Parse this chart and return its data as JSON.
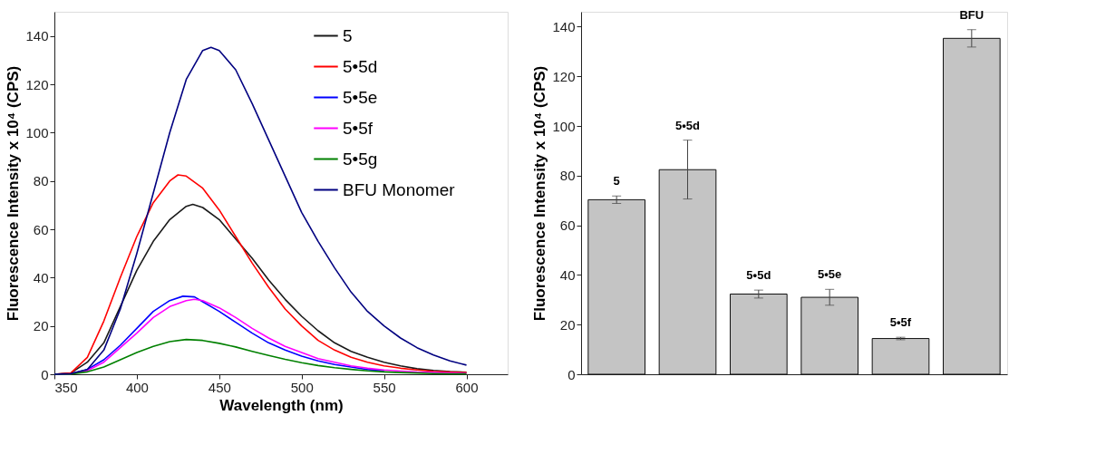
{
  "chart_data": [
    {
      "type": "line",
      "xlabel": "Wavelength (nm)",
      "ylabel": "Fluorescence Intensity x 10⁴ (CPS)",
      "xlim": [
        350,
        625
      ],
      "xticks": [
        350,
        400,
        450,
        500,
        550,
        600
      ],
      "ylim": [
        0,
        150
      ],
      "yticks": [
        0,
        20,
        40,
        60,
        80,
        100,
        120,
        140
      ],
      "grid": false,
      "legend": "top right",
      "line_style": "solid",
      "marker": "none",
      "x": [
        350,
        360,
        370,
        380,
        390,
        400,
        410,
        420,
        430,
        440,
        450,
        460,
        470,
        480,
        490,
        500,
        510,
        520,
        530,
        540,
        550,
        560,
        570,
        580,
        590,
        600
      ],
      "series": [
        {
          "name": "5",
          "color": "#1a1a1a",
          "x": [
            350,
            360,
            370,
            380,
            390,
            400,
            410,
            420,
            430,
            434,
            440,
            450,
            460,
            470,
            480,
            490,
            500,
            510,
            520,
            530,
            540,
            550,
            560,
            570,
            580,
            590,
            600
          ],
          "values": [
            0,
            0.5,
            5,
            13,
            28,
            43,
            55,
            64,
            69.5,
            70.3,
            69,
            64,
            56,
            48,
            39,
            31,
            24,
            18,
            13,
            9.5,
            7,
            5,
            3.5,
            2.3,
            1.6,
            1.1,
            0.8
          ]
        },
        {
          "name": "5•5d",
          "color": "#ff0000",
          "x": [
            350,
            360,
            370,
            380,
            390,
            400,
            410,
            420,
            425,
            430,
            440,
            450,
            460,
            470,
            480,
            490,
            500,
            510,
            520,
            530,
            540,
            550,
            560,
            570,
            580,
            590,
            600
          ],
          "values": [
            0,
            0.5,
            7,
            22,
            40,
            57,
            71,
            80,
            82.5,
            82,
            77,
            68,
            57,
            46,
            36,
            27,
            20,
            14,
            10,
            7,
            5,
            3.5,
            2.5,
            1.8,
            1.2,
            0.9,
            0.7
          ]
        },
        {
          "name": "5•5e",
          "color": "#0000ff",
          "x": [
            350,
            360,
            370,
            380,
            390,
            400,
            410,
            420,
            428,
            435,
            440,
            450,
            460,
            470,
            480,
            490,
            500,
            510,
            520,
            530,
            540,
            550
          ],
          "values": [
            0,
            0.2,
            2,
            6,
            12,
            19,
            26,
            30.5,
            32.3,
            32,
            30,
            26,
            21.5,
            17,
            13,
            10,
            7.5,
            5.5,
            4,
            3,
            2,
            1.4
          ]
        },
        {
          "name": "5•5f",
          "color": "#ff00ff",
          "x": [
            350,
            360,
            370,
            380,
            390,
            400,
            410,
            420,
            430,
            435,
            440,
            450,
            460,
            470,
            480,
            490,
            500,
            510,
            520,
            530,
            540,
            550,
            560,
            570,
            580,
            590,
            600
          ],
          "values": [
            0,
            0.2,
            1.5,
            5,
            11,
            17,
            23.5,
            28,
            30.5,
            31,
            30.5,
            27.5,
            23.5,
            19,
            15,
            11.5,
            9,
            6.5,
            5,
            3.5,
            2.5,
            1.8,
            1.3,
            0.9,
            0.7,
            0.5,
            0.4
          ]
        },
        {
          "name": "5•5g",
          "color": "#008000",
          "values": [
            0,
            0.1,
            1,
            3,
            6,
            9,
            11.5,
            13.5,
            14.4,
            14,
            12.8,
            11.3,
            9.5,
            7.8,
            6.2,
            4.8,
            3.6,
            2.7,
            2,
            1.4,
            1,
            0.7,
            0.5,
            0.3,
            0.2,
            0.2
          ]
        },
        {
          "name": "BFU Monomer",
          "color": "#000080",
          "x": [
            350,
            360,
            370,
            380,
            390,
            400,
            410,
            420,
            430,
            440,
            445,
            450,
            460,
            470,
            480,
            490,
            500,
            510,
            520,
            530,
            540,
            550,
            560,
            570,
            580,
            590,
            600
          ],
          "values": [
            0,
            0.3,
            2,
            10,
            27,
            50,
            75,
            100,
            122,
            134,
            135.3,
            134,
            126,
            112,
            97,
            82,
            67,
            55,
            44,
            34,
            26,
            20,
            15,
            11,
            8,
            5.5,
            3.8
          ]
        }
      ]
    },
    {
      "type": "bar",
      "ylabel": "Fluorescence Intensity x 10⁴ (CPS)",
      "categories": [
        null,
        null,
        null,
        null,
        null,
        null
      ],
      "annotations": [
        "5",
        "5•5d",
        "5•5d",
        "5•5e",
        "5•5f",
        "BFU"
      ],
      "values": [
        70.3,
        82.4,
        32.3,
        31,
        14.4,
        135.3
      ],
      "errors": [
        1.5,
        [
          70.6,
          94.3
        ],
        1.6,
        3.2,
        0.5,
        3.5
      ],
      "colors": [
        "#c4c4c4",
        "#c4c4c4",
        "#c4c4c4",
        "#c4c4c4",
        "#c4c4c4",
        "#c4c4c4"
      ],
      "ylim": [
        0,
        146
      ],
      "yticks": [
        0,
        20,
        40,
        60,
        80,
        100,
        120,
        140
      ],
      "tick_labels": "y"
    }
  ]
}
